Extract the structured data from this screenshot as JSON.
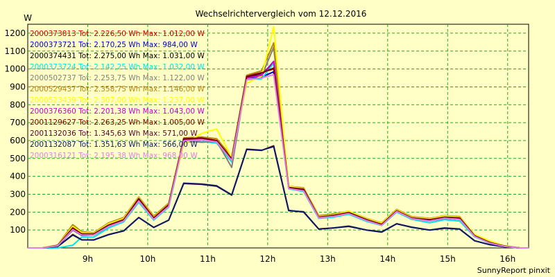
{
  "chart_data": {
    "type": "line",
    "title": "Wechselrichtervergleich vom 12.12.2016",
    "ylabel": "W",
    "footer": "SunnyReport pinxit",
    "ylim": [
      0,
      1250
    ],
    "yticks": [
      100,
      200,
      300,
      400,
      500,
      600,
      700,
      800,
      900,
      1000,
      1100,
      1200
    ],
    "xlim": [
      8.0,
      16.35
    ],
    "xticks": [
      {
        "label": "9h",
        "value": 9
      },
      {
        "label": "10h",
        "value": 10
      },
      {
        "label": "11h",
        "value": 11
      },
      {
        "label": "12h",
        "value": 12
      },
      {
        "label": "13h",
        "value": 13
      },
      {
        "label": "14h",
        "value": 14
      },
      {
        "label": "15h",
        "value": 15
      },
      {
        "label": "16h",
        "value": 16
      }
    ],
    "grid": true,
    "x": [
      8.0,
      8.25,
      8.5,
      8.75,
      8.9,
      9.1,
      9.35,
      9.6,
      9.85,
      10.1,
      10.35,
      10.6,
      10.9,
      11.15,
      11.4,
      11.65,
      11.9,
      12.1,
      12.35,
      12.6,
      12.85,
      13.1,
      13.35,
      13.65,
      13.9,
      14.15,
      14.4,
      14.7,
      14.95,
      15.2,
      15.45,
      15.7,
      15.95,
      16.2,
      16.35
    ],
    "series": [
      {
        "name": "2000373813 Tot: 2.226,50 Wh Max: 1.012,00 W",
        "color": "#cc0000",
        "values": [
          0,
          0,
          15,
          115,
          80,
          80,
          130,
          160,
          280,
          170,
          245,
          610,
          615,
          600,
          500,
          960,
          980,
          1000,
          340,
          330,
          175,
          185,
          200,
          160,
          135,
          210,
          170,
          160,
          175,
          170,
          70,
          30,
          10,
          0,
          0
        ]
      },
      {
        "name": "2000373721 Tot: 2.170,25 Wh Max: 984,00 W",
        "color": "#0000cc",
        "values": [
          0,
          0,
          12,
          100,
          70,
          72,
          118,
          150,
          265,
          160,
          235,
          600,
          605,
          595,
          490,
          950,
          955,
          984,
          335,
          320,
          170,
          178,
          192,
          152,
          128,
          205,
          165,
          150,
          165,
          160,
          65,
          28,
          8,
          0,
          0
        ]
      },
      {
        "name": "2000374431 Tot: 2.275,00 Wh Max: 1.031,00 W",
        "color": "#000000",
        "values": [
          0,
          0,
          14,
          110,
          78,
          78,
          128,
          158,
          275,
          168,
          242,
          608,
          612,
          598,
          495,
          955,
          975,
          1031,
          338,
          328,
          172,
          182,
          198,
          158,
          132,
          208,
          168,
          158,
          172,
          168,
          68,
          30,
          10,
          0,
          0
        ]
      },
      {
        "name": "2000373724 Tot: 2.142,25 Wh Max: 1.032,00 W",
        "color": "#00e5e5",
        "values": [
          0,
          0,
          0,
          15,
          60,
          60,
          112,
          145,
          255,
          155,
          228,
          590,
          595,
          585,
          480,
          940,
          945,
          1032,
          330,
          315,
          165,
          172,
          188,
          148,
          125,
          200,
          160,
          140,
          158,
          150,
          62,
          26,
          8,
          0,
          0
        ]
      },
      {
        "name": "2000502737 Tot: 2.253,75 Wh Max: 1.122,00 W",
        "color": "#808080",
        "values": [
          0,
          0,
          14,
          108,
          76,
          76,
          125,
          155,
          270,
          165,
          240,
          600,
          590,
          595,
          450,
          950,
          960,
          1122,
          335,
          325,
          170,
          180,
          196,
          156,
          130,
          206,
          166,
          155,
          170,
          165,
          66,
          29,
          9,
          0,
          0
        ]
      },
      {
        "name": "2000529437 Tot: 2.358,75 Wh Max: 1.146,00 W",
        "color": "#b8860b",
        "values": [
          0,
          0,
          16,
          130,
          90,
          85,
          140,
          170,
          285,
          178,
          250,
          615,
          620,
          610,
          510,
          965,
          990,
          1146,
          345,
          335,
          180,
          190,
          205,
          165,
          140,
          215,
          175,
          165,
          180,
          175,
          72,
          32,
          11,
          0,
          0
        ]
      },
      {
        "name": "2000523439 Tot: 2.307,00 Wh Max: 1.237,00 W",
        "color": "#ffff00",
        "values": [
          0,
          0,
          15,
          120,
          85,
          82,
          135,
          165,
          280,
          172,
          245,
          580,
          640,
          665,
          505,
          920,
          960,
          1237,
          345,
          330,
          175,
          185,
          205,
          162,
          138,
          212,
          172,
          162,
          178,
          172,
          75,
          40,
          12,
          0,
          0
        ]
      },
      {
        "name": "2000376360 Tot: 2.201,38 Wh Max: 1.043,00 W",
        "color": "#cc00cc",
        "values": [
          0,
          0,
          13,
          105,
          74,
          74,
          122,
          152,
          268,
          162,
          236,
          602,
          608,
          596,
          492,
          950,
          965,
          1043,
          336,
          322,
          170,
          178,
          195,
          155,
          128,
          206,
          165,
          152,
          168,
          162,
          66,
          28,
          9,
          0,
          0
        ]
      },
      {
        "name": "2001129627 Tot: 2.263,25 Wh Max: 1.005,00 W",
        "color": "#7a0000",
        "values": [
          0,
          0,
          14,
          112,
          78,
          78,
          128,
          158,
          276,
          168,
          242,
          610,
          614,
          600,
          498,
          958,
          978,
          1005,
          338,
          328,
          172,
          182,
          198,
          158,
          132,
          208,
          168,
          158,
          172,
          168,
          68,
          30,
          10,
          0,
          0
        ]
      },
      {
        "name": "2001132036 Tot: 1.345,63 Wh Max: 571,00 W",
        "color": "#550033",
        "values": [
          0,
          0,
          8,
          75,
          45,
          45,
          75,
          95,
          170,
          115,
          155,
          360,
          355,
          345,
          295,
          550,
          545,
          571,
          210,
          200,
          105,
          112,
          120,
          100,
          90,
          135,
          115,
          100,
          110,
          105,
          40,
          18,
          6,
          0,
          0
        ]
      },
      {
        "name": "2001132087 Tot: 1.351,63 Wh Max: 566,00 W",
        "color": "#0a1a66",
        "values": [
          0,
          0,
          8,
          72,
          45,
          44,
          74,
          96,
          170,
          114,
          155,
          362,
          357,
          347,
          297,
          552,
          546,
          566,
          208,
          202,
          106,
          112,
          122,
          100,
          88,
          135,
          116,
          100,
          112,
          106,
          40,
          18,
          6,
          0,
          0
        ]
      },
      {
        "name": "2000316121 Tot: 2.195,38 Wh Max: 968,00 W",
        "color": "#e080e0",
        "values": [
          0,
          0,
          12,
          102,
          72,
          72,
          120,
          150,
          262,
          160,
          232,
          598,
          604,
          592,
          488,
          940,
          950,
          968,
          332,
          318,
          168,
          176,
          192,
          152,
          126,
          204,
          164,
          150,
          166,
          160,
          64,
          27,
          8,
          0,
          0
        ]
      }
    ]
  }
}
